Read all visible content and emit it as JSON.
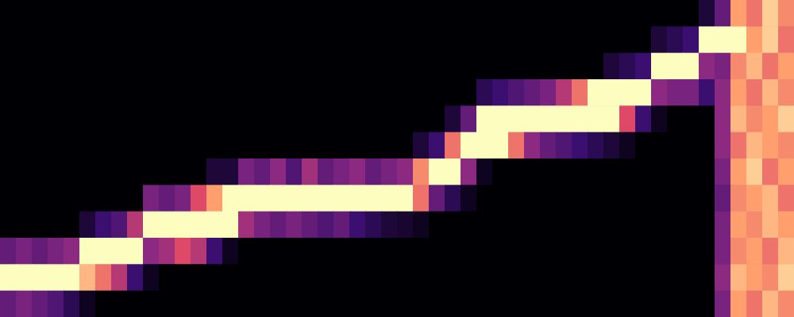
{
  "chart_data": {
    "type": "heatmap",
    "tick_labels": false,
    "color_range": [
      0,
      1
    ],
    "cells": [
      [
        0,
        0,
        0,
        0,
        0,
        0,
        0,
        0,
        0,
        0,
        0,
        0,
        0,
        0,
        0,
        0,
        0,
        0,
        0,
        0,
        0,
        0,
        0,
        0,
        0,
        0,
        0,
        0,
        0,
        0,
        0,
        0,
        0,
        0,
        0,
        0,
        0,
        0,
        0,
        0,
        0,
        0,
        0,
        0,
        0.1,
        0.3,
        0.8,
        0.7,
        0.9,
        0.75
      ],
      [
        0,
        0,
        0,
        0,
        0,
        0,
        0,
        0,
        0,
        0,
        0,
        0,
        0,
        0,
        0,
        0,
        0,
        0,
        0,
        0,
        0,
        0,
        0,
        0,
        0,
        0,
        0,
        0,
        0,
        0,
        0,
        0,
        0,
        0,
        0,
        0,
        0,
        0,
        0,
        0,
        0,
        0.1,
        0.15,
        0.2,
        1,
        1,
        1,
        0.8,
        0.9,
        0.7
      ],
      [
        0,
        0,
        0,
        0,
        0,
        0,
        0,
        0,
        0,
        0,
        0,
        0,
        0,
        0,
        0,
        0,
        0,
        0,
        0,
        0,
        0,
        0,
        0,
        0,
        0,
        0,
        0,
        0,
        0,
        0,
        0,
        0,
        0,
        0,
        0,
        0,
        0,
        0,
        0.1,
        0.15,
        0.2,
        1,
        1,
        1,
        0.4,
        0.35,
        0.75,
        0.85,
        0.7,
        0.8
      ],
      [
        0,
        0,
        0,
        0,
        0,
        0,
        0,
        0,
        0,
        0,
        0,
        0,
        0,
        0,
        0,
        0,
        0,
        0,
        0,
        0,
        0,
        0,
        0,
        0,
        0,
        0,
        0,
        0,
        0,
        0,
        0.15,
        0.2,
        0.25,
        0.3,
        0.35,
        0.5,
        0.7,
        1,
        1,
        1,
        1,
        0.4,
        0.35,
        0.35,
        0.2,
        0.4,
        0.8,
        0.7,
        0.85,
        0.75
      ],
      [
        0,
        0,
        0,
        0,
        0,
        0,
        0,
        0,
        0,
        0,
        0,
        0,
        0,
        0,
        0,
        0,
        0,
        0,
        0,
        0,
        0,
        0,
        0,
        0,
        0,
        0,
        0,
        0,
        0.1,
        0.3,
        1,
        1,
        1,
        1,
        1,
        1,
        1,
        1,
        1,
        0.6,
        0.2,
        0.05,
        0,
        0,
        0,
        0.4,
        0.85,
        0.75,
        0.8,
        0.9
      ],
      [
        0,
        0,
        0,
        0,
        0,
        0,
        0,
        0,
        0,
        0,
        0,
        0,
        0,
        0,
        0,
        0,
        0,
        0,
        0,
        0,
        0,
        0,
        0,
        0,
        0,
        0,
        0.1,
        0.2,
        0.7,
        1,
        1,
        1,
        0.7,
        0.4,
        0.3,
        0.25,
        0.2,
        0.15,
        0.1,
        0.05,
        0,
        0,
        0,
        0,
        0,
        0.4,
        0.7,
        0.85,
        0.8,
        0.75
      ],
      [
        0,
        0,
        0,
        0,
        0,
        0,
        0,
        0,
        0,
        0,
        0,
        0,
        0,
        0.1,
        0.1,
        0.35,
        0.3,
        0.4,
        0.25,
        0.45,
        0.3,
        0.35,
        0.4,
        0.3,
        0.35,
        0.4,
        0.75,
        1,
        1,
        0.4,
        0.05,
        0,
        0,
        0,
        0,
        0,
        0,
        0,
        0,
        0,
        0,
        0,
        0,
        0,
        0,
        0.35,
        0.8,
        0.9,
        0.7,
        0.8
      ],
      [
        0,
        0,
        0,
        0,
        0,
        0,
        0,
        0,
        0,
        0.35,
        0.3,
        0.35,
        0.6,
        0.8,
        1,
        1,
        1,
        1,
        1,
        1,
        1,
        1,
        1,
        1,
        1,
        1,
        0.7,
        0.3,
        0.15,
        0.05,
        0,
        0,
        0,
        0,
        0,
        0,
        0,
        0,
        0,
        0,
        0,
        0,
        0,
        0,
        0,
        0.3,
        0.75,
        0.8,
        0.85,
        0.7
      ],
      [
        0,
        0,
        0,
        0,
        0,
        0.1,
        0.2,
        0.25,
        0.5,
        1,
        1,
        1,
        1,
        1,
        1,
        0.45,
        0.35,
        0.3,
        0.35,
        0.3,
        0.25,
        0.3,
        0.2,
        0.15,
        0.1,
        0.08,
        0.05,
        0,
        0,
        0,
        0,
        0,
        0,
        0,
        0,
        0,
        0,
        0,
        0,
        0,
        0,
        0,
        0,
        0,
        0,
        0.35,
        0.8,
        0.75,
        0.85,
        0.8
      ],
      [
        0.3,
        0.35,
        0.3,
        0.35,
        0.4,
        1,
        1,
        1,
        1,
        0.4,
        0.45,
        0.6,
        0.5,
        0.2,
        0.05,
        0,
        0,
        0,
        0,
        0,
        0,
        0,
        0,
        0,
        0,
        0,
        0,
        0,
        0,
        0,
        0,
        0,
        0,
        0,
        0,
        0,
        0,
        0,
        0,
        0,
        0,
        0,
        0,
        0,
        0,
        0.35,
        0.75,
        0.8,
        0.7,
        0.85
      ],
      [
        1,
        1,
        1,
        1,
        1,
        0.85,
        0.7,
        0.5,
        0.2,
        0.05,
        0,
        0,
        0,
        0,
        0,
        0,
        0,
        0,
        0,
        0,
        0,
        0,
        0,
        0,
        0,
        0,
        0,
        0,
        0,
        0,
        0,
        0,
        0,
        0,
        0,
        0,
        0,
        0,
        0,
        0,
        0,
        0,
        0,
        0,
        0,
        0.4,
        0.85,
        0.8,
        0.75,
        0.9
      ],
      [
        0.3,
        0.35,
        0.3,
        0.25,
        0.15,
        0.05,
        0,
        0,
        0,
        0,
        0,
        0,
        0,
        0,
        0,
        0,
        0,
        0,
        0,
        0,
        0,
        0,
        0,
        0,
        0,
        0,
        0,
        0,
        0,
        0,
        0,
        0,
        0,
        0,
        0,
        0,
        0,
        0,
        0,
        0,
        0,
        0,
        0,
        0,
        0,
        0.35,
        0.8,
        0.7,
        0.85,
        0.75
      ]
    ]
  }
}
